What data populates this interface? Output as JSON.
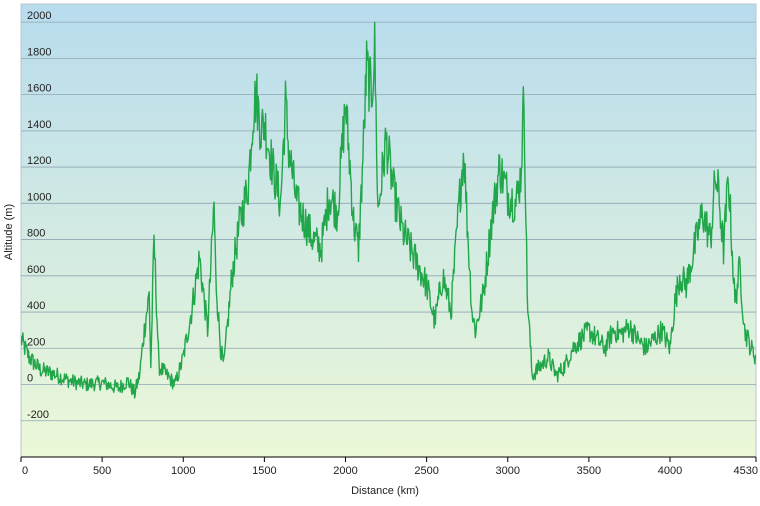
{
  "chart_data": {
    "type": "line",
    "title": "",
    "xlabel": "Distance  (km)",
    "ylabel": "Altitude (m)",
    "xlim": [
      0,
      4530
    ],
    "ylim": [
      -400,
      2100
    ],
    "x_ticks": [
      0,
      500,
      1000,
      1500,
      2000,
      2500,
      3000,
      3500,
      4000,
      4530
    ],
    "y_ticks": [
      -200,
      0,
      200,
      400,
      600,
      800,
      1000,
      1200,
      1400,
      1600,
      1800,
      2000
    ],
    "grid": true,
    "legend": "none",
    "colors": {
      "line": "#22a64a",
      "grid": "#8fa6b3",
      "bg_top": "#b8dcee",
      "bg_bottom": "#ecf8d8",
      "axis": "#000000"
    },
    "series": [
      {
        "name": "",
        "x": [
          0,
          50,
          120,
          200,
          300,
          400,
          500,
          600,
          660,
          700,
          730,
          760,
          790,
          800,
          820,
          850,
          900,
          950,
          1000,
          1050,
          1100,
          1150,
          1190,
          1200,
          1230,
          1250,
          1270,
          1300,
          1350,
          1400,
          1430,
          1450,
          1480,
          1500,
          1550,
          1600,
          1630,
          1650,
          1700,
          1750,
          1800,
          1850,
          1900,
          1950,
          2000,
          2020,
          2050,
          2080,
          2100,
          2130,
          2160,
          2180,
          2200,
          2250,
          2300,
          2350,
          2400,
          2450,
          2500,
          2550,
          2600,
          2650,
          2700,
          2730,
          2750,
          2780,
          2800,
          2850,
          2900,
          2950,
          3000,
          3050,
          3080,
          3100,
          3120,
          3150,
          3200,
          3250,
          3300,
          3350,
          3400,
          3450,
          3500,
          3550,
          3600,
          3650,
          3700,
          3750,
          3800,
          3850,
          3900,
          3950,
          4000,
          4030,
          4060,
          4100,
          4150,
          4200,
          4250,
          4280,
          4300,
          4330,
          4360,
          4400,
          4430,
          4460,
          4500,
          4530
        ],
        "values": [
          250,
          150,
          80,
          60,
          20,
          0,
          10,
          -20,
          20,
          -50,
          50,
          300,
          500,
          100,
          800,
          100,
          50,
          0,
          150,
          400,
          700,
          300,
          1000,
          600,
          200,
          100,
          300,
          600,
          900,
          1100,
          1500,
          1600,
          1400,
          1450,
          1200,
          1000,
          1550,
          1300,
          1000,
          900,
          800,
          750,
          1050,
          950,
          1550,
          1300,
          900,
          750,
          1100,
          1750,
          1600,
          1850,
          950,
          1350,
          1050,
          850,
          750,
          650,
          550,
          350,
          600,
          400,
          1000,
          1300,
          900,
          400,
          300,
          500,
          900,
          1200,
          1050,
          1000,
          1150,
          1600,
          500,
          50,
          100,
          150,
          50,
          100,
          200,
          250,
          300,
          250,
          200,
          300,
          280,
          320,
          250,
          200,
          250,
          300,
          200,
          450,
          600,
          550,
          750,
          950,
          800,
          1150,
          1050,
          750,
          1150,
          450,
          650,
          300,
          200,
          150
        ]
      }
    ]
  }
}
